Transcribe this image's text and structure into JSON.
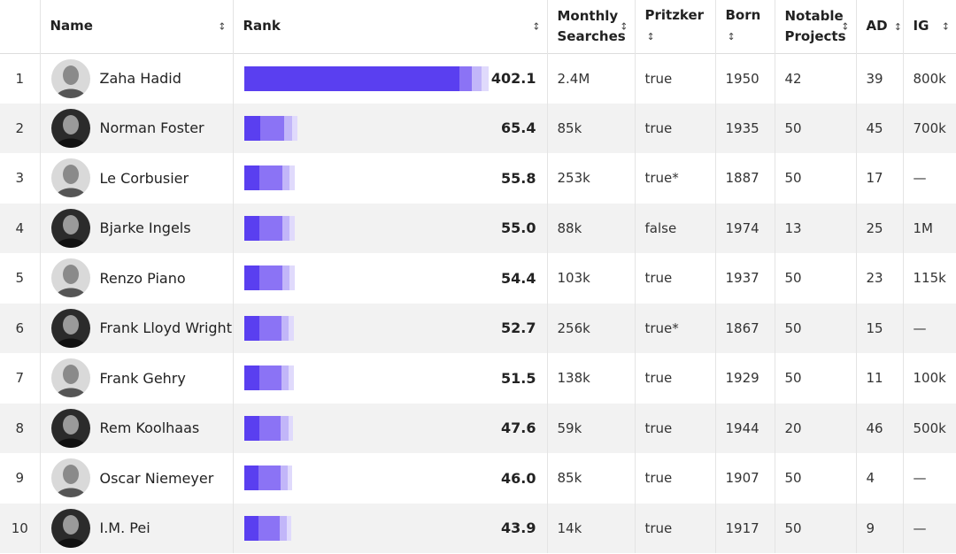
{
  "headers": {
    "index": "",
    "name": "Name",
    "rank": "Rank",
    "monthly_searches_line1": "Monthly",
    "monthly_searches_line2": "Searches",
    "pritzker": "Pritzker",
    "born": "Born",
    "notable_line1": "Notable",
    "notable_line2": "Projects",
    "ad": "AD",
    "ig": "IG",
    "sort_glyph": "↕"
  },
  "colors": {
    "bar_primary": "#5a3ff0",
    "bar_mid": "#8b73f5",
    "bar_light": "#c2b6f9",
    "bar_faint": "#e0dafc"
  },
  "rows": [
    {
      "index": "1",
      "name": "Zaha Hadid",
      "avatar_icon": "portrait-icon",
      "rank_value": 402.1,
      "rank_label": "402.1",
      "monthly_searches": "2.4M",
      "pritzker": "true",
      "born": "1950",
      "notable_projects": "42",
      "ad": "39",
      "ig": "800k"
    },
    {
      "index": "2",
      "name": "Norman Foster",
      "avatar_icon": "portrait-icon",
      "rank_value": 65.4,
      "rank_label": "65.4",
      "monthly_searches": "85k",
      "pritzker": "true",
      "born": "1935",
      "notable_projects": "50",
      "ad": "45",
      "ig": "700k"
    },
    {
      "index": "3",
      "name": "Le Corbusier",
      "avatar_icon": "portrait-icon",
      "rank_value": 55.8,
      "rank_label": "55.8",
      "monthly_searches": "253k",
      "pritzker": "true*",
      "born": "1887",
      "notable_projects": "50",
      "ad": "17",
      "ig": "—"
    },
    {
      "index": "4",
      "name": "Bjarke Ingels",
      "avatar_icon": "portrait-icon",
      "rank_value": 55.0,
      "rank_label": "55.0",
      "monthly_searches": "88k",
      "pritzker": "false",
      "born": "1974",
      "notable_projects": "13",
      "ad": "25",
      "ig": "1M"
    },
    {
      "index": "5",
      "name": "Renzo Piano",
      "avatar_icon": "portrait-icon",
      "rank_value": 54.4,
      "rank_label": "54.4",
      "monthly_searches": "103k",
      "pritzker": "true",
      "born": "1937",
      "notable_projects": "50",
      "ad": "23",
      "ig": "115k"
    },
    {
      "index": "6",
      "name": "Frank Lloyd Wright",
      "avatar_icon": "portrait-icon",
      "rank_value": 52.7,
      "rank_label": "52.7",
      "monthly_searches": "256k",
      "pritzker": "true*",
      "born": "1867",
      "notable_projects": "50",
      "ad": "15",
      "ig": "—"
    },
    {
      "index": "7",
      "name": "Frank Gehry",
      "avatar_icon": "portrait-icon",
      "rank_value": 51.5,
      "rank_label": "51.5",
      "monthly_searches": "138k",
      "pritzker": "true",
      "born": "1929",
      "notable_projects": "50",
      "ad": "11",
      "ig": "100k"
    },
    {
      "index": "8",
      "name": "Rem Koolhaas",
      "avatar_icon": "portrait-icon",
      "rank_value": 47.6,
      "rank_label": "47.6",
      "monthly_searches": "59k",
      "pritzker": "true",
      "born": "1944",
      "notable_projects": "20",
      "ad": "46",
      "ig": "500k"
    },
    {
      "index": "9",
      "name": "Oscar Niemeyer",
      "avatar_icon": "portrait-icon",
      "rank_value": 46.0,
      "rank_label": "46.0",
      "monthly_searches": "85k",
      "pritzker": "true",
      "born": "1907",
      "notable_projects": "50",
      "ad": "4",
      "ig": "—"
    },
    {
      "index": "10",
      "name": "I.M. Pei",
      "avatar_icon": "portrait-icon",
      "rank_value": 43.9,
      "rank_label": "43.9",
      "monthly_searches": "14k",
      "pritzker": "true",
      "born": "1917",
      "notable_projects": "50",
      "ad": "9",
      "ig": "—"
    }
  ]
}
